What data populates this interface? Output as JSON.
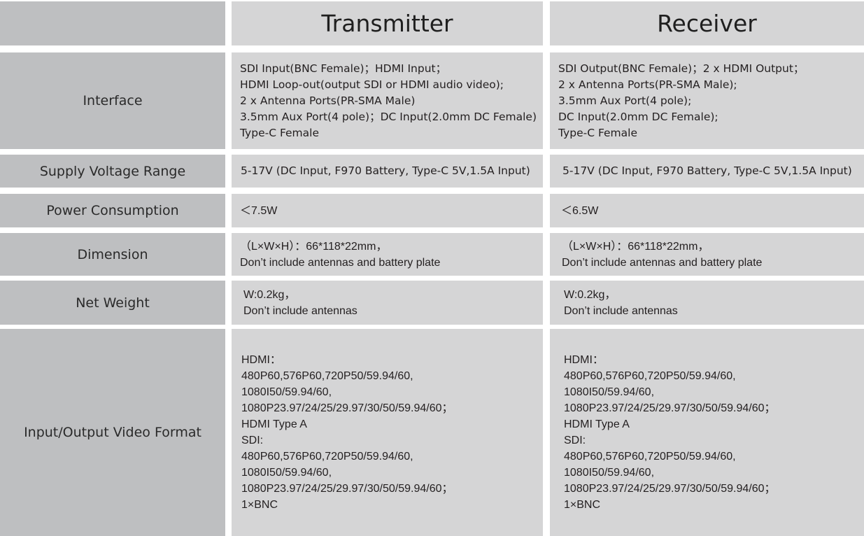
{
  "header": {
    "transmitter": "Transmitter",
    "receiver": "Receiver"
  },
  "rows": [
    {
      "label": "Interface",
      "transmitter": "SDI Input(BNC Female)；HDMI Input；\nHDMI Loop-out(output SDI or HDMI audio video);\n2 x Antenna Ports(PR-SMA Male)\n3.5mm Aux Port(4 pole)；DC Input(2.0mm DC Female)\nType-C Female",
      "receiver": "SDI Output(BNC Female)；2 x HDMI Output；\n2 x Antenna Ports(PR-SMA Male);\n3.5mm Aux Port(4 pole);\nDC Input(2.0mm DC Female);\nType-C Female"
    },
    {
      "label": "Supply Voltage Range",
      "transmitter": "5-17V (DC Input, F970 Battery, Type-C 5V,1.5A Input)",
      "receiver": "5-17V (DC Input, F970 Battery, Type-C 5V,1.5A Input)"
    },
    {
      "label": "Power Consumption",
      "transmitter": "＜7.5W",
      "receiver": "＜6.5W"
    },
    {
      "label": "Dimension",
      "transmitter": "（L×W×H）：66*118*22mm，\nDon’t include antennas and battery plate",
      "receiver": "（L×W×H）：66*118*22mm，\nDon’t include antennas and battery plate"
    },
    {
      "label": "Net Weight",
      "transmitter": "W:0.2kg，\nDon’t include antennas",
      "receiver": "W:0.2kg，\nDon’t include antennas"
    },
    {
      "label": "Input/Output Video Format",
      "transmitter": "HDMI：\n480P60,576P60,720P50/59.94/60,\n1080I50/59.94/60,\n1080P23.97/24/25/29.97/30/50/59.94/60；\nHDMI Type A\nSDI:\n480P60,576P60,720P50/59.94/60,\n1080I50/59.94/60,\n1080P23.97/24/25/29.97/30/50/59.94/60；\n1×BNC",
      "receiver": "HDMI：\n480P60,576P60,720P50/59.94/60,\n1080I50/59.94/60,\n1080P23.97/24/25/29.97/30/50/59.94/60；\nHDMI Type A\nSDI:\n480P60,576P60,720P50/59.94/60,\n1080I50/59.94/60,\n1080P23.97/24/25/29.97/30/50/59.94/60；\n1×BNC"
    }
  ]
}
